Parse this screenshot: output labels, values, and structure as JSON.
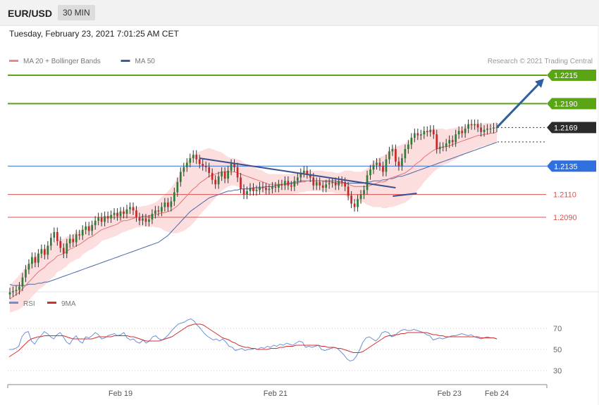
{
  "header": {
    "symbol": "EUR/USD",
    "timeframe": "30 MIN",
    "datetime": "Tuesday, February 23, 2021 7:01:25 AM CET"
  },
  "colors": {
    "bull": "#2e7d32",
    "bear": "#c62828",
    "ma20": "#e57373",
    "band": "#fbd3d3",
    "ma50": "#4a6aa8",
    "target": "#5aa514",
    "support_blue": "#2f6fde",
    "support_red": "#d9534f",
    "arrow": "#2f5f9f",
    "rsi": "#6d8fd6",
    "rsi_ma": "#d32f2f"
  },
  "chart_data": [
    {
      "type": "candlestick",
      "title": "EUR/USD",
      "legend": [
        {
          "name": "MA 20 + Bollinger Bands",
          "color": "#e88a8a"
        },
        {
          "name": "MA 50",
          "color": "#3a5f9f"
        }
      ],
      "credit": "Research © 2021 Trading Central",
      "ylim": [
        1.1975,
        1.2245
      ],
      "x_ticks": [
        {
          "label": "Feb 19",
          "index": 35
        },
        {
          "label": "Feb 21",
          "index": 84
        },
        {
          "label": "Feb 23",
          "index": 139
        },
        {
          "label": "Feb 24",
          "index": 154
        }
      ],
      "levels": [
        {
          "value": 1.2215,
          "label": "1.2215",
          "kind": "target"
        },
        {
          "value": 1.219,
          "label": "1.2190",
          "kind": "target"
        },
        {
          "value": 1.2169,
          "label": "1.2169",
          "kind": "current"
        },
        {
          "value": 1.2135,
          "label": "1.2135",
          "kind": "pivot"
        },
        {
          "value": 1.211,
          "label": "1.2110",
          "kind": "support"
        },
        {
          "value": 1.209,
          "label": "1.2090",
          "kind": "support"
        }
      ],
      "trendline": {
        "from": {
          "index": 60,
          "value": 1.2142
        },
        "to": {
          "index": 122,
          "value": 1.2116
        }
      },
      "projection_arrow": {
        "from": {
          "index": 154,
          "value": 1.2169
        },
        "to": {
          "index": 170,
          "value": 1.2212
        }
      },
      "closes": [
        1.2024,
        1.2025,
        1.2026,
        1.2029,
        1.2037,
        1.2044,
        1.2049,
        1.2055,
        1.205,
        1.2058,
        1.2062,
        1.2057,
        1.2065,
        1.2072,
        1.2077,
        1.2069,
        1.2063,
        1.2058,
        1.2067,
        1.2071,
        1.2068,
        1.2075,
        1.2074,
        1.2079,
        1.2082,
        1.2078,
        1.2083,
        1.2087,
        1.209,
        1.2086,
        1.2091,
        1.2089,
        1.2092,
        1.2094,
        1.2091,
        1.2095,
        1.2093,
        1.2097,
        1.2099,
        1.2096,
        1.209,
        1.2087,
        1.2089,
        1.2086,
        1.2088,
        1.2093,
        1.2096,
        1.2095,
        1.2099,
        1.2103,
        1.2099,
        1.2104,
        1.2112,
        1.2121,
        1.213,
        1.2134,
        1.2138,
        1.2142,
        1.2145,
        1.2141,
        1.2137,
        1.2135,
        1.2134,
        1.2129,
        1.2123,
        1.2119,
        1.2126,
        1.213,
        1.2124,
        1.2131,
        1.2137,
        1.2134,
        1.2125,
        1.2115,
        1.211,
        1.2113,
        1.2116,
        1.2113,
        1.2114,
        1.2117,
        1.2116,
        1.2114,
        1.2115,
        1.2117,
        1.2116,
        1.2119,
        1.2118,
        1.2122,
        1.2118,
        1.2117,
        1.2122,
        1.2125,
        1.2129,
        1.2131,
        1.2128,
        1.2125,
        1.2118,
        1.2121,
        1.2118,
        1.2116,
        1.2119,
        1.212,
        1.2121,
        1.2118,
        1.2122,
        1.2121,
        1.2117,
        1.2109,
        1.2102,
        1.2099,
        1.2106,
        1.211,
        1.2114,
        1.2127,
        1.2132,
        1.2136,
        1.2138,
        1.2135,
        1.213,
        1.2141,
        1.2148,
        1.215,
        1.2139,
        1.2135,
        1.2142,
        1.215,
        1.2154,
        1.216,
        1.2164,
        1.2162,
        1.2163,
        1.2166,
        1.2165,
        1.2167,
        1.2163,
        1.215,
        1.2152,
        1.2152,
        1.2155,
        1.2158,
        1.2156,
        1.2163,
        1.2166,
        1.2164,
        1.2168,
        1.2172,
        1.2171,
        1.2172,
        1.2169,
        1.2165,
        1.2167,
        1.2168,
        1.2168,
        1.2169,
        1.2169
      ],
      "ma20": [
        1.2018,
        1.202,
        1.2022,
        1.2024,
        1.2027,
        1.203,
        1.2033,
        1.2036,
        1.2039,
        1.2042,
        1.2044,
        1.2046,
        1.2049,
        1.2051,
        1.2053,
        1.2056,
        1.2057,
        1.2058,
        1.206,
        1.2062,
        1.2063,
        1.2065,
        1.2066,
        1.2068,
        1.207,
        1.2072,
        1.2073,
        1.2075,
        1.2077,
        1.2079,
        1.208,
        1.2081,
        1.2082,
        1.2083,
        1.2084,
        1.2086,
        1.2087,
        1.2087,
        1.2088,
        1.2089,
        1.209,
        1.209,
        1.2091,
        1.2091,
        1.2091,
        1.2092,
        1.2092,
        1.2093,
        1.2094,
        1.2094,
        1.2095,
        1.2096,
        1.2098,
        1.21,
        1.2103,
        1.2106,
        1.2109,
        1.2112,
        1.2115,
        1.2117,
        1.212,
        1.2122,
        1.2124,
        1.2126,
        1.2127,
        1.2128,
        1.2129,
        1.213,
        1.213,
        1.213,
        1.213,
        1.213,
        1.2129,
        1.2128,
        1.2127,
        1.2126,
        1.2125,
        1.2124,
        1.2123,
        1.2122,
        1.2121,
        1.212,
        1.2119,
        1.2119,
        1.2119,
        1.2119,
        1.2119,
        1.2119,
        1.2119,
        1.2119,
        1.212,
        1.212,
        1.2121,
        1.2121,
        1.2122,
        1.2122,
        1.2122,
        1.2122,
        1.2122,
        1.2122,
        1.2121,
        1.2121,
        1.2121,
        1.212,
        1.212,
        1.212,
        1.212,
        1.2119,
        1.2118,
        1.2117,
        1.2117,
        1.2117,
        1.2117,
        1.2117,
        1.2118,
        1.2119,
        1.212,
        1.2121,
        1.2121,
        1.2122,
        1.2124,
        1.2125,
        1.2126,
        1.2127,
        1.2128,
        1.2129,
        1.2131,
        1.2133,
        1.2136,
        1.2138,
        1.214,
        1.2143,
        1.2145,
        1.2147,
        1.2149,
        1.215,
        1.2151,
        1.2152,
        1.2152,
        1.2153,
        1.2154,
        1.2155,
        1.2156,
        1.2157,
        1.2158,
        1.2159,
        1.216,
        1.2161,
        1.2162,
        1.2162,
        1.2163,
        1.2163,
        1.2164,
        1.2164,
        1.2165
      ],
      "ma50": [
        1.2031,
        1.203,
        1.203,
        1.203,
        1.203,
        1.203,
        1.2031,
        1.2031,
        1.2031,
        1.2032,
        1.2032,
        1.2033,
        1.2033,
        1.2034,
        1.2035,
        1.2036,
        1.2037,
        1.2038,
        1.2039,
        1.204,
        1.2041,
        1.2042,
        1.2043,
        1.2044,
        1.2045,
        1.2046,
        1.2047,
        1.2048,
        1.2049,
        1.205,
        1.2051,
        1.2052,
        1.2053,
        1.2054,
        1.2055,
        1.2056,
        1.2057,
        1.2058,
        1.2059,
        1.206,
        1.2061,
        1.2062,
        1.2063,
        1.2064,
        1.2065,
        1.2066,
        1.2067,
        1.2068,
        1.207,
        1.2072,
        1.2074,
        1.2077,
        1.208,
        1.2083,
        1.2086,
        1.2089,
        1.2092,
        1.2095,
        1.2097,
        1.2099,
        1.2101,
        1.2103,
        1.2105,
        1.2107,
        1.2108,
        1.2109,
        1.211,
        1.2111,
        1.2112,
        1.2113,
        1.2113,
        1.2114,
        1.2114,
        1.2115,
        1.2115,
        1.2115,
        1.2115,
        1.2116,
        1.2116,
        1.2116,
        1.2116,
        1.2117,
        1.2117,
        1.2117,
        1.2118,
        1.2118,
        1.2119,
        1.2119,
        1.212,
        1.212,
        1.2121,
        1.2121,
        1.2122,
        1.2122,
        1.2122,
        1.2122,
        1.2122,
        1.2122,
        1.2122,
        1.2122,
        1.2122,
        1.2122,
        1.2122,
        1.2122,
        1.2121,
        1.2121,
        1.212,
        1.212,
        1.212,
        1.212,
        1.212,
        1.212,
        1.212,
        1.2121,
        1.2121,
        1.2122,
        1.2122,
        1.2122,
        1.2123,
        1.2123,
        1.2124,
        1.2124,
        1.2125,
        1.2126,
        1.2126,
        1.2127,
        1.2128,
        1.2129,
        1.213,
        1.2131,
        1.2132,
        1.2133,
        1.2134,
        1.2135,
        1.2136,
        1.2137,
        1.2138,
        1.2139,
        1.214,
        1.2141,
        1.2142,
        1.2143,
        1.2144,
        1.2145,
        1.2146,
        1.2147,
        1.2148,
        1.2149,
        1.215,
        1.2151,
        1.2152,
        1.2153,
        1.2154,
        1.2155,
        1.2156
      ],
      "band_width": [
        0.0012,
        0.0013,
        0.0014,
        0.0015,
        0.0016,
        0.0016,
        0.0016,
        0.0016,
        0.0016,
        0.0016,
        0.0016,
        0.0016,
        0.0016,
        0.0015,
        0.0015,
        0.0014,
        0.0014,
        0.0013,
        0.0013,
        0.0012,
        0.0012,
        0.0012,
        0.0012,
        0.0011,
        0.0011,
        0.0011,
        0.0011,
        0.0011,
        0.0011,
        0.001,
        0.001,
        0.001,
        0.001,
        0.001,
        0.001,
        0.001,
        0.001,
        0.0009,
        0.0009,
        0.0009,
        0.0009,
        0.0009,
        0.0009,
        0.0009,
        0.001,
        0.001,
        0.0011,
        0.0012,
        0.0014,
        0.0016,
        0.0018,
        0.002,
        0.0022,
        0.0024,
        0.0026,
        0.0028,
        0.0029,
        0.003,
        0.003,
        0.0029,
        0.0028,
        0.0027,
        0.0026,
        0.0025,
        0.0023,
        0.0021,
        0.0019,
        0.0017,
        0.0015,
        0.0013,
        0.0012,
        0.0012,
        0.0012,
        0.0012,
        0.0011,
        0.0011,
        0.0011,
        0.001,
        0.001,
        0.001,
        0.001,
        0.0009,
        0.0009,
        0.0009,
        0.0009,
        0.0009,
        0.0009,
        0.0009,
        0.0009,
        0.0009,
        0.0009,
        0.0009,
        0.0009,
        0.0009,
        0.0009,
        0.0009,
        0.0009,
        0.0009,
        0.0009,
        0.0009,
        0.0009,
        0.0009,
        0.0009,
        0.0009,
        0.0009,
        0.001,
        0.0011,
        0.0012,
        0.0013,
        0.0013,
        0.0013,
        0.0013,
        0.0014,
        0.0016,
        0.0018,
        0.002,
        0.0021,
        0.0022,
        0.0023,
        0.0024,
        0.0025,
        0.0026,
        0.0026,
        0.0026,
        0.0026,
        0.0026,
        0.0026,
        0.0026,
        0.0025,
        0.0024,
        0.0023,
        0.0022,
        0.0021,
        0.002,
        0.0019,
        0.0018,
        0.0017,
        0.0016,
        0.0015,
        0.0015,
        0.0014,
        0.0014,
        0.0013,
        0.0013,
        0.0012,
        0.0012,
        0.0012,
        0.0011,
        0.0011,
        0.001,
        0.001,
        0.001,
        0.0009,
        0.0009,
        0.0009,
        0.0009,
        0.0008,
        0.0008
      ]
    },
    {
      "type": "line",
      "legend": [
        {
          "name": "RSI",
          "color": "#6d8fd6"
        },
        {
          "name": "9MA",
          "color": "#d32f2f"
        }
      ],
      "ylim": [
        20,
        80
      ],
      "y_ticks": [
        70,
        50,
        30
      ],
      "rsi": [
        50,
        50,
        51,
        53,
        62,
        66,
        67,
        58,
        55,
        60,
        63,
        67,
        65,
        62,
        60,
        64,
        66,
        62,
        57,
        55,
        60,
        63,
        58,
        56,
        62,
        61,
        63,
        66,
        64,
        60,
        61,
        63,
        64,
        65,
        63,
        64,
        66,
        61,
        59,
        60,
        57,
        56,
        59,
        56,
        58,
        62,
        63,
        60,
        59,
        61,
        64,
        68,
        71,
        74,
        75,
        76,
        78,
        79,
        77,
        73,
        70,
        66,
        63,
        61,
        59,
        60,
        58,
        60,
        57,
        53,
        52,
        49,
        50,
        51,
        49,
        50,
        50,
        51,
        50,
        52,
        51,
        53,
        52,
        54,
        53,
        55,
        54,
        56,
        55,
        54,
        56,
        58,
        57,
        52,
        53,
        52,
        53,
        54,
        50,
        49,
        50,
        51,
        52,
        51,
        48,
        45,
        41,
        39,
        40,
        44,
        50,
        57,
        61,
        62,
        60,
        58,
        61,
        66,
        67,
        66,
        62,
        63,
        66,
        68,
        69,
        68,
        68,
        69,
        68,
        67,
        66,
        64,
        63,
        59,
        60,
        61,
        60,
        61,
        62,
        63,
        63,
        64,
        65,
        64,
        63,
        64,
        62,
        61,
        60,
        61,
        62,
        61,
        61,
        60
      ],
      "rsi_ma": [
        43,
        45,
        47,
        49,
        52,
        55,
        58,
        60,
        61,
        62,
        62,
        63,
        63,
        63,
        63,
        63,
        63,
        63,
        62,
        61,
        60,
        60,
        60,
        60,
        60,
        60,
        60,
        61,
        62,
        62,
        62,
        62,
        62,
        63,
        63,
        63,
        63,
        63,
        62,
        62,
        61,
        60,
        59,
        58,
        58,
        58,
        58,
        58,
        59,
        60,
        61,
        62,
        64,
        66,
        68,
        70,
        72,
        73,
        74,
        74,
        74,
        73,
        71,
        69,
        67,
        65,
        63,
        61,
        60,
        59,
        57,
        56,
        54,
        53,
        52,
        52,
        51,
        51,
        50,
        50,
        50,
        50,
        51,
        51,
        51,
        52,
        52,
        53,
        53,
        53,
        54,
        54,
        54,
        54,
        54,
        54,
        54,
        54,
        53,
        53,
        52,
        52,
        52,
        51,
        51,
        50,
        49,
        48,
        47,
        47,
        47,
        48,
        50,
        52,
        54,
        56,
        58,
        60,
        62,
        63,
        63,
        64,
        64,
        65,
        65,
        66,
        66,
        66,
        66,
        66,
        66,
        66,
        65,
        64,
        64,
        63,
        63,
        62,
        62,
        62,
        62,
        62,
        62,
        62,
        62,
        62,
        62,
        62,
        61,
        61,
        61,
        61,
        61,
        60
      ]
    }
  ]
}
